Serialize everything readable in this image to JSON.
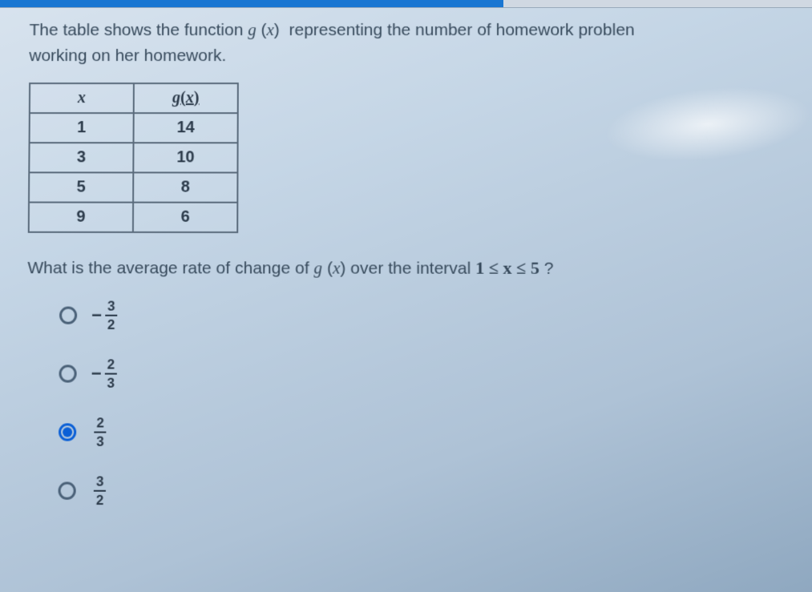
{
  "progress": {
    "percent": 62
  },
  "question": {
    "line1": "The table shows the function g (x)  representing the number of homework problem",
    "line2": "working on her homework."
  },
  "table": {
    "headers": {
      "col1": "x",
      "col2": "g(x)"
    },
    "rows": [
      {
        "x": "1",
        "gx": "14"
      },
      {
        "x": "3",
        "gx": "10"
      },
      {
        "x": "5",
        "gx": "8"
      },
      {
        "x": "9",
        "gx": "6"
      }
    ]
  },
  "question2": {
    "prefix": "What is the average rate of change of ",
    "func": "g (x)",
    "mid": "  over the interval ",
    "interval": "1 ≤ x ≤ 5",
    "suffix": "   ?"
  },
  "options": [
    {
      "sign": "−",
      "num": "3",
      "den": "2",
      "selected": false
    },
    {
      "sign": "−",
      "num": "2",
      "den": "3",
      "selected": false
    },
    {
      "sign": "",
      "num": "2",
      "den": "3",
      "selected": true
    },
    {
      "sign": "",
      "num": "3",
      "den": "2",
      "selected": false
    }
  ],
  "colors": {
    "progress_fill": "#1976d2",
    "text": "#374a5c",
    "border": "#5a6b7c",
    "radio_selected": "#0a5fd6"
  }
}
